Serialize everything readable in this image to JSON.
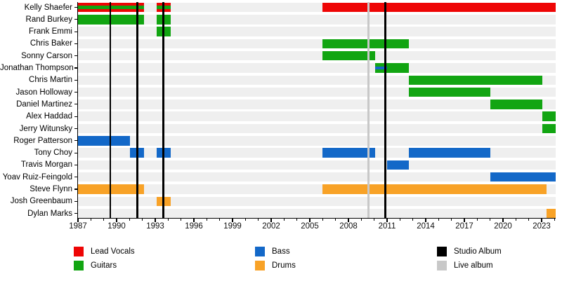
{
  "chart_data": {
    "type": "timeline",
    "x_axis": {
      "start": 1987,
      "end": 2024.1,
      "major_ticks": [
        1987,
        1990,
        1993,
        1996,
        1999,
        2002,
        2005,
        2008,
        2011,
        2014,
        2017,
        2020,
        2023
      ],
      "minor_tick_interval": 1
    },
    "roles": {
      "lead_vocals": {
        "label": "Lead Vocals",
        "color": "#EE0505"
      },
      "guitars": {
        "label": "Guitars",
        "color": "#12A512"
      },
      "bass": {
        "label": "Bass",
        "color": "#1368C8"
      },
      "drums": {
        "label": "Drums",
        "color": "#F8A227"
      }
    },
    "events": {
      "studio_album": {
        "label": "Studio Album",
        "color": "#000000",
        "years": [
          1989.5,
          1991.6,
          1993.62,
          2010.87
        ]
      },
      "live_album": {
        "label": "Live album",
        "color": "#C8C8C8",
        "years": [
          2009.55
        ]
      }
    },
    "members": [
      {
        "name": "Kelly Shaefer",
        "segments": [
          {
            "role": "lead_vocals",
            "start": 1987,
            "end": 1992.15,
            "stripe": {
              "role": "guitars",
              "start": 1987,
              "end": 1992.15
            }
          },
          {
            "role": "lead_vocals",
            "start": 1993.1,
            "end": 1994.2,
            "stripe": {
              "role": "guitars",
              "start": 1993.1,
              "end": 1994.2
            }
          },
          {
            "role": "lead_vocals",
            "start": 2006,
            "end": 2024.1
          }
        ]
      },
      {
        "name": "Rand Burkey",
        "segments": [
          {
            "role": "guitars",
            "start": 1987,
            "end": 1992.15
          },
          {
            "role": "guitars",
            "start": 1993.1,
            "end": 1994.2
          }
        ]
      },
      {
        "name": "Frank Emmi",
        "segments": [
          {
            "role": "guitars",
            "start": 1993.1,
            "end": 1994.2
          }
        ]
      },
      {
        "name": "Chris Baker",
        "segments": [
          {
            "role": "guitars",
            "start": 2006,
            "end": 2012.7
          }
        ]
      },
      {
        "name": "Sonny Carson",
        "segments": [
          {
            "role": "guitars",
            "start": 2006,
            "end": 2010.05
          }
        ]
      },
      {
        "name": "Jonathan Thompson",
        "segments": [
          {
            "role": "guitars",
            "start": 2010.05,
            "end": 2012.7,
            "stripe": {
              "role": "bass",
              "start": 2010.05,
              "end": 2011.0
            }
          }
        ]
      },
      {
        "name": "Chris Martin",
        "segments": [
          {
            "role": "guitars",
            "start": 2012.7,
            "end": 2023.05
          }
        ]
      },
      {
        "name": "Jason Holloway",
        "segments": [
          {
            "role": "guitars",
            "start": 2012.7,
            "end": 2019.0
          }
        ]
      },
      {
        "name": "Daniel Martinez",
        "segments": [
          {
            "role": "guitars",
            "start": 2019.0,
            "end": 2023.05
          }
        ]
      },
      {
        "name": "Alex Haddad",
        "segments": [
          {
            "role": "guitars",
            "start": 2023.05,
            "end": 2024.1
          }
        ]
      },
      {
        "name": "Jerry Witunsky",
        "segments": [
          {
            "role": "guitars",
            "start": 2023.05,
            "end": 2024.1
          }
        ]
      },
      {
        "name": "Roger Patterson",
        "segments": [
          {
            "role": "bass",
            "start": 1987,
            "end": 1991.05
          }
        ]
      },
      {
        "name": "Tony Choy",
        "segments": [
          {
            "role": "bass",
            "start": 1991.05,
            "end": 1992.15
          },
          {
            "role": "bass",
            "start": 1993.1,
            "end": 1994.2
          },
          {
            "role": "bass",
            "start": 2006,
            "end": 2010.05
          },
          {
            "role": "bass",
            "start": 2012.7,
            "end": 2019.0
          }
        ]
      },
      {
        "name": "Travis Morgan",
        "segments": [
          {
            "role": "bass",
            "start": 2011.0,
            "end": 2012.7
          }
        ]
      },
      {
        "name": "Yoav Ruiz-Feingold",
        "segments": [
          {
            "role": "bass",
            "start": 2019.0,
            "end": 2024.1
          }
        ]
      },
      {
        "name": "Steve Flynn",
        "segments": [
          {
            "role": "drums",
            "start": 1987,
            "end": 1992.15
          },
          {
            "role": "drums",
            "start": 2006,
            "end": 2023.4
          }
        ]
      },
      {
        "name": "Josh Greenbaum",
        "segments": [
          {
            "role": "drums",
            "start": 1993.1,
            "end": 1994.2
          }
        ]
      },
      {
        "name": "Dylan Marks",
        "segments": [
          {
            "role": "drums",
            "start": 2023.4,
            "end": 2024.1
          }
        ]
      }
    ],
    "legend_columns": [
      [
        "lead_vocals",
        "guitars"
      ],
      [
        "bass",
        "drums"
      ],
      [
        "studio_album",
        "live_album"
      ]
    ]
  }
}
